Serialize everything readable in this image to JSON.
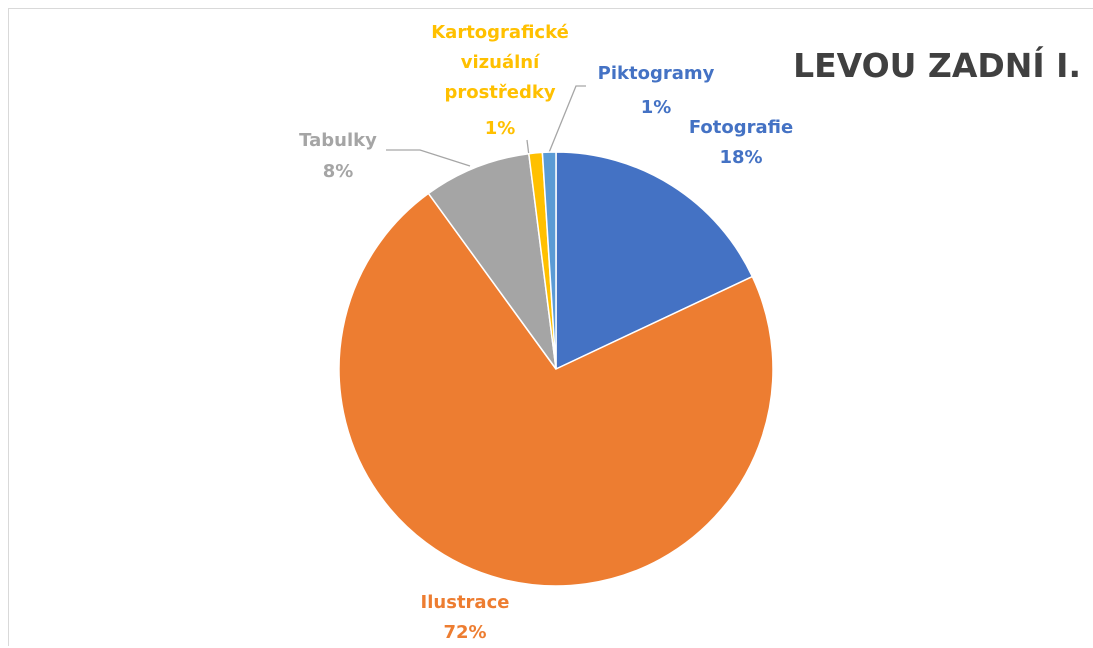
{
  "chart_data": {
    "type": "pie",
    "title": "LEVOU ZADNÍ I.",
    "categories": [
      "Fotografie",
      "Ilustrace",
      "Tabulky",
      "Kartografické vizuální prostředky",
      "Piktogramy"
    ],
    "values": [
      18,
      72,
      8,
      1,
      1
    ],
    "value_labels": [
      "18%",
      "72%",
      "8%",
      "1%",
      "1%"
    ],
    "colors": [
      "#4472c4",
      "#ed7d31",
      "#a5a5a5",
      "#ffc000",
      "#5b9bd5"
    ]
  }
}
